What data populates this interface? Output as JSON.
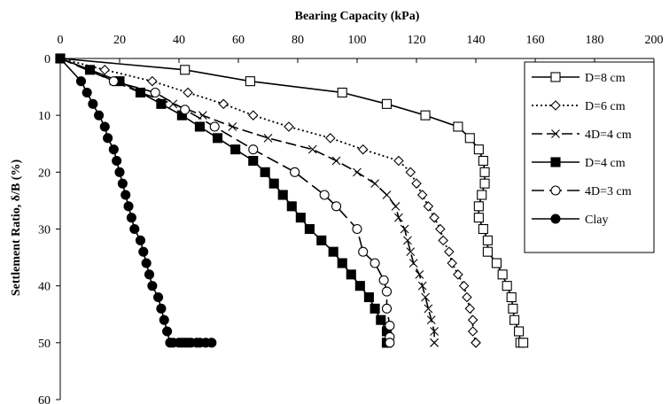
{
  "chart_data": {
    "type": "line",
    "xlabel": "Bearing Capacity (kPa)",
    "ylabel": "Settlement Ratio, δ/B (%)",
    "xlim": [
      0,
      200
    ],
    "ylim": [
      0,
      60
    ],
    "x_axis_position": "top",
    "y_axis_inverted": true,
    "xticks": [
      "0",
      "20",
      "40",
      "60",
      "80",
      "100",
      "120",
      "140",
      "160",
      "180",
      "200"
    ],
    "yticks": [
      "0",
      "10",
      "20",
      "30",
      "40",
      "50",
      "60"
    ],
    "grid": false,
    "legend_position": "top-right",
    "series": [
      {
        "name": "D=8 cm",
        "marker": "open-square",
        "line": "solid",
        "x": [
          0,
          42,
          64,
          95,
          110,
          123,
          134,
          138,
          141,
          142.5,
          143,
          143,
          142,
          141,
          141,
          142.5,
          144,
          144,
          147,
          149,
          150.5,
          152,
          152.5,
          153,
          154.5,
          155,
          156
        ],
        "y": [
          0,
          2,
          4,
          6,
          8,
          10,
          12,
          14,
          16,
          18,
          20,
          22,
          24,
          26,
          28,
          30,
          32,
          34,
          36,
          38,
          40,
          42,
          44,
          46,
          48,
          50,
          50
        ]
      },
      {
        "name": "D=6 cm",
        "marker": "open-diamond",
        "line": "dotted",
        "x": [
          0,
          15,
          31,
          43,
          55,
          65,
          77,
          91,
          102,
          114,
          118,
          120,
          122,
          124,
          126,
          128,
          129,
          131,
          132,
          134,
          136,
          137,
          138,
          139,
          139,
          140,
          140
        ],
        "y": [
          0,
          2,
          4,
          6,
          8,
          10,
          12,
          14,
          16,
          18,
          20,
          22,
          24,
          26,
          28,
          30,
          32,
          34,
          36,
          38,
          40,
          42,
          44,
          46,
          48,
          50,
          50
        ]
      },
      {
        "name": "4D=4 cm",
        "marker": "x",
        "line": "long-dash",
        "x": [
          0,
          10,
          18,
          27,
          38,
          48,
          58,
          70,
          85,
          93,
          100,
          106,
          110,
          113,
          114,
          116,
          117,
          118,
          119,
          121,
          122,
          123,
          124,
          125,
          126,
          126,
          126
        ],
        "y": [
          0,
          2,
          4,
          6,
          8,
          10,
          12,
          14,
          16,
          18,
          20,
          22,
          24,
          26,
          28,
          30,
          32,
          34,
          36,
          38,
          40,
          42,
          44,
          46,
          48,
          50,
          50
        ]
      },
      {
        "name": "D=4 cm",
        "marker": "filled-square",
        "line": "solid",
        "x": [
          0,
          10,
          20,
          27,
          34,
          41,
          47,
          53,
          59,
          65,
          69,
          72,
          75,
          78,
          81,
          84,
          88,
          92,
          95,
          98,
          101,
          104,
          106,
          108,
          110,
          110,
          110
        ],
        "y": [
          0,
          2,
          4,
          6,
          8,
          10,
          12,
          14,
          16,
          18,
          20,
          22,
          24,
          26,
          28,
          30,
          32,
          34,
          36,
          38,
          40,
          42,
          44,
          46,
          48,
          50,
          50
        ]
      },
      {
        "name": "4D=3 cm",
        "marker": "open-circle",
        "line": "dashed",
        "x": [
          0,
          18,
          32,
          42,
          52,
          65,
          79,
          89,
          93,
          100,
          102,
          106,
          109,
          110,
          110,
          111,
          111,
          111
        ],
        "y": [
          0,
          4,
          6,
          9,
          12,
          16,
          20,
          24,
          26,
          30,
          34,
          36,
          39,
          41,
          44,
          47,
          49,
          50
        ]
      },
      {
        "name": "Clay",
        "marker": "filled-circle",
        "line": "solid",
        "x": [
          0,
          7,
          9,
          11,
          13,
          15,
          16,
          18,
          19,
          20,
          21,
          22,
          23,
          24,
          25,
          27,
          28,
          29,
          30,
          31,
          33,
          34,
          35,
          36,
          37,
          38,
          40,
          41,
          42,
          43,
          44,
          46,
          47,
          49,
          51
        ],
        "y": [
          0,
          4,
          6,
          8,
          10,
          12,
          14,
          16,
          18,
          20,
          22,
          24,
          26,
          28,
          30,
          32,
          34,
          36,
          38,
          40,
          42,
          44,
          46,
          48,
          50,
          50,
          50,
          50,
          50,
          50,
          50,
          50,
          50,
          50,
          50
        ]
      }
    ]
  }
}
